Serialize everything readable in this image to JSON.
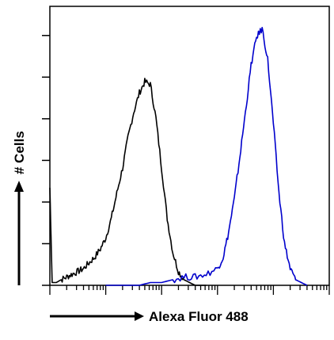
{
  "chart_data": {
    "type": "line",
    "title": "",
    "xlabel": "Alexa Fluor 488",
    "ylabel": "# Cells",
    "x_scale": "log",
    "xlim": [
      1,
      100000
    ],
    "ylim": [
      0,
      100
    ],
    "grid": false,
    "legend": "none",
    "series": [
      {
        "color": "#000000",
        "x": [
          1,
          1.1,
          1.3,
          1.6,
          2,
          2.5,
          3.2,
          4,
          5,
          6.3,
          8,
          10,
          12.6,
          15.8,
          20,
          25,
          31.6,
          40,
          50,
          63,
          79,
          100,
          126,
          158,
          200,
          251,
          316,
          398,
          500,
          630
        ],
        "y": [
          35,
          1,
          1,
          2,
          3,
          4,
          5,
          6,
          8,
          10,
          13,
          17,
          24,
          33,
          42,
          53,
          62,
          69,
          73,
          72,
          60,
          42,
          24,
          12,
          5,
          2,
          1,
          0,
          0,
          0
        ]
      },
      {
        "color": "#0000cc",
        "x": [
          10,
          20,
          40,
          63,
          100,
          158,
          251,
          398,
          630,
          1000,
          1260,
          1580,
          2000,
          2510,
          3160,
          4000,
          5000,
          6300,
          7900,
          10000,
          12600,
          15800,
          20000,
          25000,
          31600,
          40000
        ],
        "y": [
          0,
          0,
          0,
          1,
          1,
          2,
          3,
          3,
          4,
          6,
          10,
          19,
          31,
          46,
          62,
          79,
          89,
          92,
          81,
          58,
          33,
          15,
          6,
          2,
          1,
          0
        ]
      }
    ]
  }
}
